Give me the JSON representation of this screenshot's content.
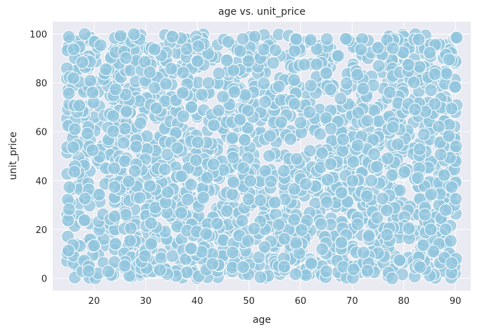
{
  "chart_data": {
    "type": "scatter",
    "title": "age vs. unit_price",
    "xlabel": "age",
    "ylabel": "unit_price",
    "xlim": [
      12,
      93
    ],
    "ylim": [
      -5,
      105
    ],
    "xticks": [
      20,
      30,
      40,
      50,
      60,
      70,
      80,
      90
    ],
    "yticks": [
      0,
      20,
      40,
      60,
      80,
      100
    ],
    "grid": true,
    "point_color": "#92c5de",
    "point_edge_color": "#ffffff",
    "background_color": "#eaeaf2",
    "grid_color": "#ffffff",
    "x_range": [
      15,
      90
    ],
    "y_range": [
      0,
      100
    ],
    "point_count": 2000
  }
}
